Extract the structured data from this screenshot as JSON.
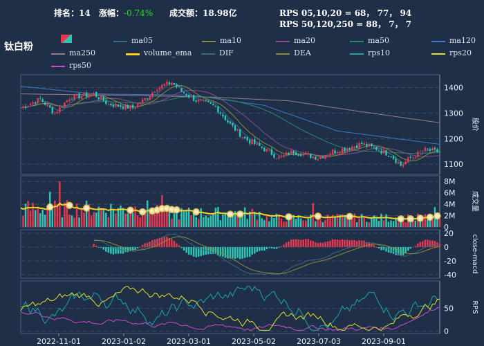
{
  "header": {
    "rank_label": "排名：",
    "rank_value": "14",
    "change_label": "涨幅：",
    "change_value": "-0.74%",
    "turnover_label": "成交额：",
    "turnover_value": "18.98亿",
    "rps_line1": "RPS 05,10,20 = 68， 77， 94",
    "rps_line2": "RPS 50,120,250 = 88， 7， 7"
  },
  "title": "钛白粉",
  "colors": {
    "background": "#1f2f48",
    "up": "#e8384f",
    "down": "#2ec7b3",
    "volume_ema": "#ffd21f"
  },
  "legend": [
    {
      "name": "ma05",
      "color": "#3b6b8a"
    },
    {
      "name": "ma10",
      "color": "#8c8a3a"
    },
    {
      "name": "ma20",
      "color": "#8a4e8a"
    },
    {
      "name": "ma50",
      "color": "#2a8a6a"
    },
    {
      "name": "ma120",
      "color": "#3a7ad0"
    },
    {
      "name": "ma250",
      "color": "#9a7e86"
    },
    {
      "name": "volume_ema",
      "color": "#ffd21f"
    },
    {
      "name": "DIF",
      "color": "#3a6a80"
    },
    {
      "name": "DEA",
      "color": "#8c8a3a"
    },
    {
      "name": "rps10",
      "color": "#1aa8a8"
    },
    {
      "name": "rps20",
      "color": "#e6e02a"
    },
    {
      "name": "rps50",
      "color": "#d04ad0"
    }
  ],
  "chart_data": [
    {
      "type": "candlestick",
      "ylabel": "股价",
      "ylim": [
        1060,
        1450
      ],
      "yticks": [
        1100,
        1200,
        1300,
        1400
      ],
      "x_dates": [
        "2022-11-01",
        "2023-01-02",
        "2023-03-01",
        "2023-05-02",
        "2023-07-03",
        "2023-09-01"
      ],
      "price_path": [
        [
          0,
          1320
        ],
        [
          8,
          1355
        ],
        [
          14,
          1300
        ],
        [
          20,
          1360
        ],
        [
          30,
          1375
        ],
        [
          36,
          1335
        ],
        [
          46,
          1320
        ],
        [
          52,
          1362
        ],
        [
          56,
          1400
        ],
        [
          62,
          1420
        ],
        [
          66,
          1385
        ],
        [
          72,
          1350
        ],
        [
          80,
          1325
        ],
        [
          86,
          1255
        ],
        [
          92,
          1200
        ],
        [
          98,
          1170
        ],
        [
          106,
          1125
        ],
        [
          112,
          1150
        ],
        [
          116,
          1140
        ],
        [
          122,
          1125
        ],
        [
          128,
          1150
        ],
        [
          134,
          1163
        ],
        [
          140,
          1180
        ],
        [
          146,
          1160
        ],
        [
          152,
          1135
        ],
        [
          156,
          1095
        ],
        [
          160,
          1125
        ],
        [
          166,
          1155
        ],
        [
          172,
          1148
        ]
      ],
      "ma250_path": [
        [
          0,
          1375
        ],
        [
          40,
          1370
        ],
        [
          80,
          1362
        ],
        [
          110,
          1348
        ],
        [
          140,
          1305
        ],
        [
          172,
          1262
        ]
      ],
      "ma120_path": [
        [
          0,
          1405
        ],
        [
          30,
          1375
        ],
        [
          70,
          1370
        ],
        [
          100,
          1330
        ],
        [
          130,
          1230
        ],
        [
          172,
          1178
        ]
      ]
    },
    {
      "type": "bar",
      "ylabel": "成交量",
      "ylim": [
        0,
        9
      ],
      "unit": "M",
      "yticks": [
        0,
        2,
        4,
        6,
        8
      ],
      "ytick_labels": [
        "0",
        "2M",
        "4M",
        "6M",
        "8M"
      ]
    },
    {
      "type": "bar",
      "ylabel": "close-macd",
      "ylim": [
        -45,
        25
      ],
      "yticks": [
        -40,
        -20,
        0,
        20
      ]
    },
    {
      "type": "line",
      "ylabel": "RPS",
      "ylim": [
        -5,
        110
      ],
      "yticks": [
        0,
        50
      ],
      "series": [
        {
          "name": "rps10"
        },
        {
          "name": "rps20"
        },
        {
          "name": "rps50"
        }
      ]
    }
  ]
}
